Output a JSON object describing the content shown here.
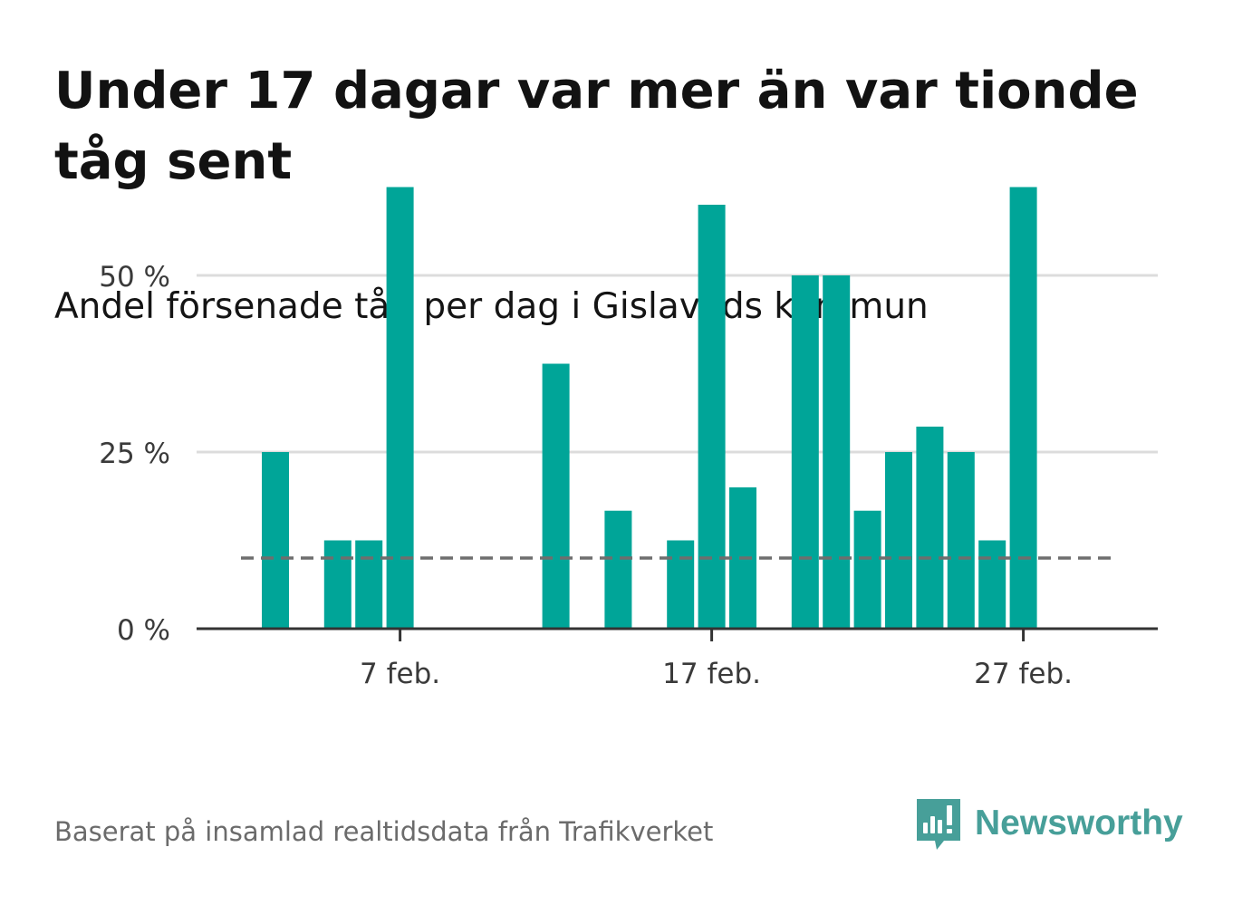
{
  "title": "Under 17 dagar var mer än var tionde tåg sent",
  "subtitle": "Andel försenade tåg per dag i Gislaveds kommun",
  "source": "Baserat på insamlad realtidsdata från Trafikverket",
  "brand": {
    "name": "Newsworthy",
    "icon": "newsworthy-logo-icon",
    "color": "#479f99"
  },
  "colors": {
    "bar": "#00a598",
    "reference_line": "#6e6e6e",
    "grid": "#dcdcdc",
    "axis": "#333333"
  },
  "chart_data": {
    "type": "bar",
    "x_dates": [
      "1 feb.",
      "2 feb.",
      "3 feb.",
      "4 feb.",
      "5 feb.",
      "6 feb.",
      "7 feb.",
      "8 feb.",
      "9 feb.",
      "10 feb.",
      "11 feb.",
      "12 feb.",
      "13 feb.",
      "14 feb.",
      "15 feb.",
      "16 feb.",
      "17 feb.",
      "18 feb.",
      "19 feb.",
      "20 feb.",
      "21 feb.",
      "22 feb.",
      "23 feb.",
      "24 feb.",
      "25 feb.",
      "26 feb.",
      "27 feb.",
      "28 feb."
    ],
    "values": [
      0,
      0,
      25,
      0,
      12.5,
      12.5,
      62.5,
      0,
      0,
      0,
      0,
      37.5,
      0,
      16.7,
      0,
      12.5,
      60,
      20,
      0,
      50,
      50,
      16.7,
      25,
      28.6,
      25,
      12.5,
      62.5,
      0
    ],
    "y_ticks": [
      0,
      25,
      50
    ],
    "y_tick_labels": [
      "0 %",
      "25 %",
      "50 %"
    ],
    "x_ticks": [
      "7 feb.",
      "17 feb.",
      "27 feb."
    ],
    "reference_value": 10,
    "reference_style": "dashed",
    "ylim": [
      0,
      65
    ],
    "grid": true,
    "xlabel": "",
    "ylabel": ""
  }
}
